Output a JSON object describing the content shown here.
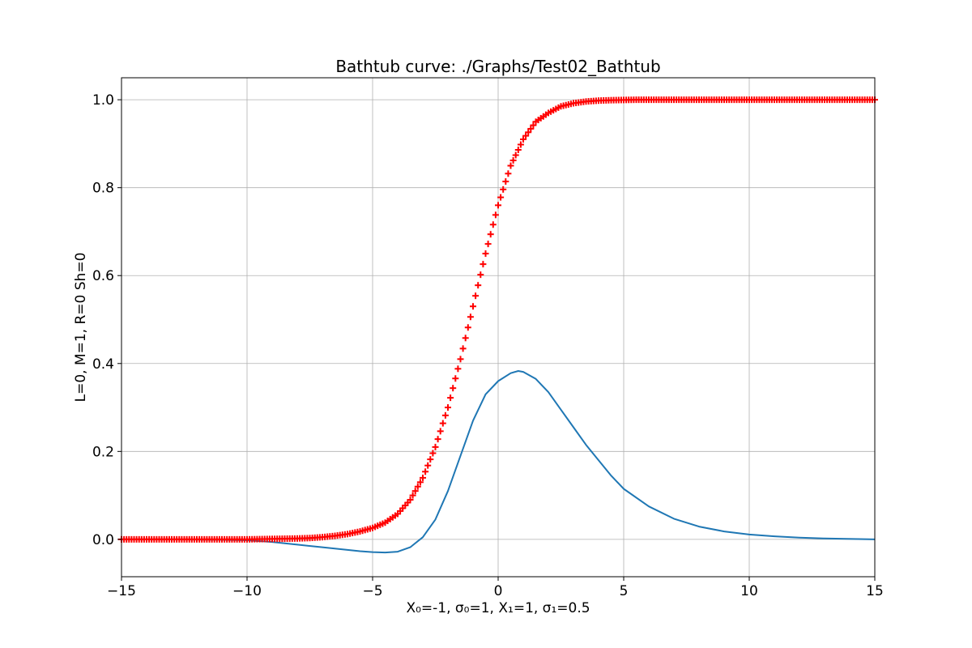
{
  "chart_data": {
    "type": "line",
    "title": "Bathtub curve: ./Graphs/Test02_Bathtub",
    "xlabel": "X₀=-1, σ₀=1, X₁=1, σ₁=0.5",
    "ylabel": "L=0,  M=1, R=0 Sh=0",
    "xlim": [
      -15,
      15
    ],
    "ylim": [
      -0.085,
      1.05
    ],
    "xticks": [
      -15,
      -10,
      -5,
      0,
      5,
      10,
      15
    ],
    "xtick_labels": [
      "−15",
      "−10",
      "−5",
      "0",
      "5",
      "10",
      "15"
    ],
    "yticks": [
      0.0,
      0.2,
      0.4,
      0.6,
      0.8,
      1.0
    ],
    "ytick_labels": [
      "0.0",
      "0.2",
      "0.4",
      "0.6",
      "0.8",
      "1.0"
    ],
    "grid": true,
    "legend": "none",
    "series": [
      {
        "marker": "+",
        "style": "markers",
        "color": "#ff0000",
        "x": [
          -15,
          -14,
          -13,
          -12,
          -11,
          -10,
          -9,
          -8,
          -7.5,
          -7,
          -6.5,
          -6,
          -5.5,
          -5,
          -4.5,
          -4,
          -3.5,
          -3,
          -2.5,
          -2,
          -1.5,
          -1,
          -0.5,
          0,
          0.5,
          1,
          1.5,
          2,
          2.5,
          3,
          3.5,
          4,
          4.5,
          5,
          5.5,
          6,
          7,
          8,
          10,
          12,
          15
        ],
        "y": [
          0.0,
          0.0,
          0.0,
          0.0,
          0.0,
          0.0,
          0.001,
          0.002,
          0.003,
          0.005,
          0.008,
          0.012,
          0.018,
          0.026,
          0.038,
          0.058,
          0.09,
          0.14,
          0.21,
          0.3,
          0.41,
          0.53,
          0.65,
          0.76,
          0.85,
          0.91,
          0.95,
          0.97,
          0.985,
          0.992,
          0.996,
          0.998,
          0.999,
          0.9995,
          1.0,
          1.0,
          1.0,
          1.0,
          1.0,
          1.0,
          1.0
        ]
      },
      {
        "style": "line",
        "color": "#1f77b4",
        "x": [
          -15,
          -13,
          -11,
          -10,
          -9,
          -8,
          -7,
          -6,
          -5.5,
          -5,
          -4.5,
          -4,
          -3.5,
          -3,
          -2.5,
          -2,
          -1.5,
          -1,
          -0.5,
          0,
          0.5,
          0.8,
          1,
          1.5,
          2,
          2.5,
          3,
          3.5,
          4,
          4.5,
          5,
          6,
          7,
          8,
          9,
          10,
          11,
          12,
          13,
          15
        ],
        "y": [
          0.0,
          0.0,
          -0.001,
          -0.002,
          -0.006,
          -0.012,
          -0.018,
          -0.024,
          -0.027,
          -0.029,
          -0.03,
          -0.028,
          -0.018,
          0.005,
          0.045,
          0.11,
          0.19,
          0.27,
          0.33,
          0.36,
          0.378,
          0.383,
          0.381,
          0.365,
          0.335,
          0.295,
          0.255,
          0.215,
          0.18,
          0.145,
          0.115,
          0.075,
          0.047,
          0.029,
          0.018,
          0.011,
          0.007,
          0.004,
          0.002,
          0.0
        ]
      }
    ]
  }
}
